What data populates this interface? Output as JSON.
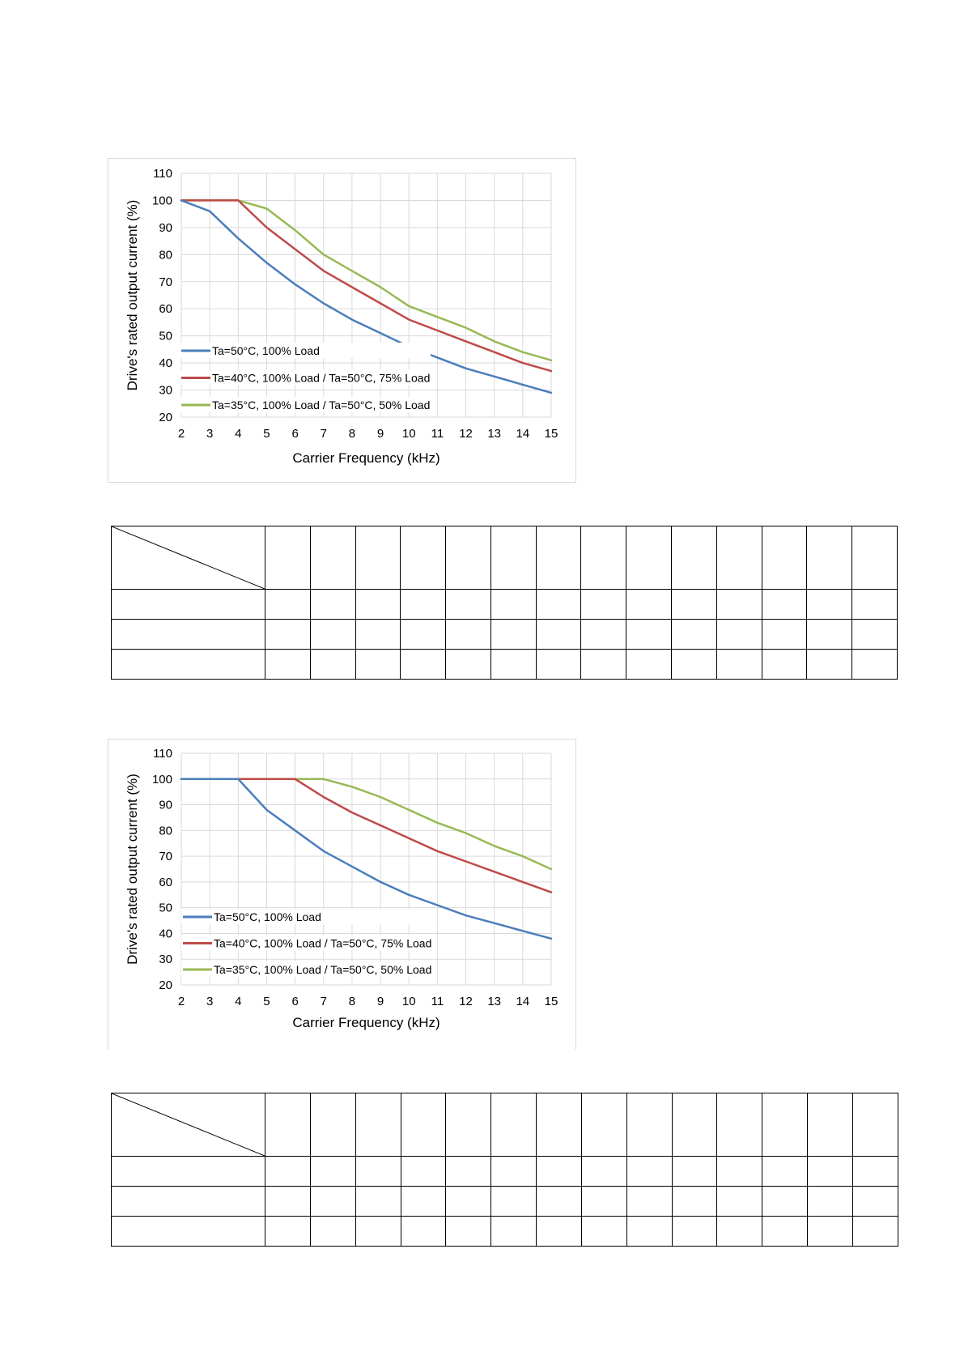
{
  "chart_data": [
    {
      "type": "line",
      "title": "",
      "xlabel": "Carrier Frequency (kHz)",
      "ylabel": "Drive's rated output current (%)",
      "xlim": [
        2,
        15
      ],
      "ylim": [
        20,
        110
      ],
      "xticks": [
        2,
        3,
        4,
        5,
        6,
        7,
        8,
        9,
        10,
        11,
        12,
        13,
        14,
        15
      ],
      "yticks": [
        20,
        30,
        40,
        50,
        60,
        70,
        80,
        90,
        100,
        110
      ],
      "grid": true,
      "legend_position": "bottom-left",
      "series": [
        {
          "name": "Ta=50°C, 100% Load",
          "color": "#4a7ebb",
          "x": [
            2,
            3,
            4,
            5,
            6,
            7,
            8,
            9,
            10,
            11,
            12,
            13,
            14,
            15
          ],
          "y": [
            100,
            96,
            86,
            77,
            69,
            62,
            56,
            51,
            46,
            42,
            38,
            35,
            32,
            29
          ]
        },
        {
          "name": "Ta=40°C, 100% Load / Ta=50°C, 75% Load",
          "color": "#be4b48",
          "x": [
            2,
            3,
            4,
            5,
            6,
            7,
            8,
            9,
            10,
            11,
            12,
            13,
            14,
            15
          ],
          "y": [
            100,
            100,
            100,
            90,
            82,
            74,
            68,
            62,
            56,
            52,
            48,
            44,
            40,
            37
          ]
        },
        {
          "name": "Ta=35°C, 100% Load / Ta=50°C, 50% Load",
          "color": "#98b954",
          "x": [
            2,
            3,
            4,
            5,
            6,
            7,
            8,
            9,
            10,
            11,
            12,
            13,
            14,
            15
          ],
          "y": [
            100,
            100,
            100,
            97,
            89,
            80,
            74,
            68,
            61,
            57,
            53,
            48,
            44,
            41
          ]
        }
      ]
    },
    {
      "type": "line",
      "title": "",
      "xlabel": "Carrier Frequency (kHz)",
      "ylabel": "Drive's rated output current (%)",
      "xlim": [
        2,
        15
      ],
      "ylim": [
        20,
        110
      ],
      "xticks": [
        2,
        3,
        4,
        5,
        6,
        7,
        8,
        9,
        10,
        11,
        12,
        13,
        14,
        15
      ],
      "yticks": [
        20,
        30,
        40,
        50,
        60,
        70,
        80,
        90,
        100,
        110
      ],
      "grid": true,
      "legend_position": "bottom-left",
      "series": [
        {
          "name": "Ta=50°C, 100% Load",
          "color": "#4a7ebb",
          "x": [
            2,
            3,
            4,
            5,
            6,
            7,
            8,
            9,
            10,
            11,
            12,
            13,
            14,
            15
          ],
          "y": [
            100,
            100,
            100,
            88,
            80,
            72,
            66,
            60,
            55,
            51,
            47,
            44,
            41,
            38
          ]
        },
        {
          "name": "Ta=40°C, 100% Load / Ta=50°C, 75% Load",
          "color": "#be4b48",
          "x": [
            2,
            3,
            4,
            5,
            6,
            7,
            8,
            9,
            10,
            11,
            12,
            13,
            14,
            15
          ],
          "y": [
            100,
            100,
            100,
            100,
            100,
            93,
            87,
            82,
            77,
            72,
            68,
            64,
            60,
            56
          ]
        },
        {
          "name": "Ta=35°C, 100% Load / Ta=50°C, 50% Load",
          "color": "#98b954",
          "x": [
            2,
            3,
            4,
            5,
            6,
            7,
            8,
            9,
            10,
            11,
            12,
            13,
            14,
            15
          ],
          "y": [
            100,
            100,
            100,
            100,
            100,
            100,
            97,
            93,
            88,
            83,
            79,
            74,
            70,
            65
          ]
        }
      ]
    }
  ],
  "tables": [
    {
      "data_columns": 14,
      "body_rows": 3
    },
    {
      "data_columns": 14,
      "body_rows": 3
    }
  ]
}
